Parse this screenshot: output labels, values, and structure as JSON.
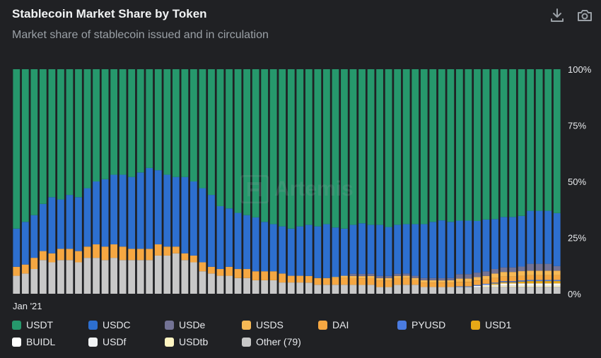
{
  "header": {
    "title": "Stablecoin Market Share by Token",
    "subtitle": "Market share of stablecoin issued and in circulation",
    "download_icon": "download-icon",
    "camera_icon": "camera-icon"
  },
  "watermark": {
    "text": "Artemis"
  },
  "colors": {
    "background": "#202124",
    "grid": "#3c4043",
    "axis_text": "#e8eaed"
  },
  "chart_data": {
    "type": "bar",
    "stacked": true,
    "normalized": true,
    "title": "Stablecoin Market Share by Token",
    "subtitle": "Market share of stablecoin issued and in circulation",
    "x_tick_labels": [
      {
        "index": 0,
        "label": "Jan '21"
      }
    ],
    "y_ticks": [
      "0%",
      "25%",
      "50%",
      "75%",
      "100%"
    ],
    "ylim": [
      0,
      100
    ],
    "y_axis_side": "right",
    "grid": false,
    "legend_position": "bottom",
    "series": [
      {
        "name": "Other (79)",
        "color": "#c8c8c8",
        "values": [
          8,
          9,
          11,
          15,
          14,
          15,
          15,
          14,
          16,
          16,
          15,
          16,
          15,
          15,
          15,
          15,
          17,
          17,
          18,
          15,
          14,
          10,
          9,
          8,
          8,
          7,
          7,
          6,
          6,
          6,
          5,
          5,
          5,
          5,
          4,
          4,
          4,
          4,
          4,
          4,
          4,
          3,
          3,
          4,
          4,
          4,
          3,
          3,
          3,
          3,
          3,
          3,
          3,
          3,
          3,
          3,
          3,
          3,
          3,
          3,
          3,
          3
        ]
      },
      {
        "name": "USDtb",
        "color": "#fff5c2",
        "values": [
          0,
          0,
          0,
          0,
          0,
          0,
          0,
          0,
          0,
          0,
          0,
          0,
          0,
          0,
          0,
          0,
          0,
          0,
          0,
          0,
          0,
          0,
          0,
          0,
          0,
          0,
          0,
          0,
          0,
          0,
          0,
          0,
          0,
          0,
          0,
          0,
          0,
          0,
          0,
          0,
          0,
          0,
          0,
          0,
          0,
          0,
          0,
          0,
          0,
          0,
          0,
          0,
          0,
          0.5,
          0.5,
          0.5,
          0.5,
          0.5,
          0.5,
          0.5,
          0.5,
          0.5
        ]
      },
      {
        "name": "USDf",
        "color": "#f1f3f4",
        "values": [
          0,
          0,
          0,
          0,
          0,
          0,
          0,
          0,
          0,
          0,
          0,
          0,
          0,
          0,
          0,
          0,
          0,
          0,
          0,
          0,
          0,
          0,
          0,
          0,
          0,
          0,
          0,
          0,
          0,
          0,
          0,
          0,
          0,
          0,
          0,
          0,
          0,
          0,
          0,
          0,
          0,
          0,
          0,
          0,
          0,
          0,
          0,
          0,
          0,
          0,
          0,
          0,
          0,
          0,
          0,
          0.5,
          0.5,
          0.5,
          0.5,
          0.5,
          0.5,
          0.5
        ]
      },
      {
        "name": "BUIDL",
        "color": "#ffffff",
        "values": [
          0,
          0,
          0,
          0,
          0,
          0,
          0,
          0,
          0,
          0,
          0,
          0,
          0,
          0,
          0,
          0,
          0,
          0,
          0,
          0,
          0,
          0,
          0,
          0,
          0,
          0,
          0,
          0,
          0,
          0,
          0,
          0,
          0,
          0,
          0,
          0,
          0,
          0,
          0,
          0,
          0,
          0,
          0,
          0,
          0,
          0,
          0,
          0,
          0,
          0,
          0,
          0,
          0.5,
          0.5,
          0.5,
          0.5,
          0.5,
          0.5,
          0.5,
          0.5,
          0.5,
          0.5
        ]
      },
      {
        "name": "USD1",
        "color": "#e6a817",
        "values": [
          0,
          0,
          0,
          0,
          0,
          0,
          0,
          0,
          0,
          0,
          0,
          0,
          0,
          0,
          0,
          0,
          0,
          0,
          0,
          0,
          0,
          0,
          0,
          0,
          0,
          0,
          0,
          0,
          0,
          0,
          0,
          0,
          0,
          0,
          0,
          0,
          0,
          0,
          0,
          0,
          0,
          0,
          0,
          0,
          0,
          0,
          0,
          0,
          0,
          0,
          0,
          0,
          0,
          0,
          0.5,
          0.5,
          0.5,
          0.8,
          1,
          1,
          1,
          1
        ]
      },
      {
        "name": "PYUSD",
        "color": "#4a7be0",
        "values": [
          0,
          0,
          0,
          0,
          0,
          0,
          0,
          0,
          0,
          0,
          0,
          0,
          0,
          0,
          0,
          0,
          0,
          0,
          0,
          0,
          0,
          0,
          0,
          0,
          0,
          0,
          0,
          0,
          0,
          0,
          0,
          0,
          0,
          0,
          0,
          0,
          0,
          0,
          0,
          0,
          0,
          0,
          0,
          0,
          0,
          0,
          0,
          0,
          0,
          0,
          0.3,
          0.3,
          0.4,
          0.4,
          0.4,
          0.5,
          0.5,
          0.5,
          0.5,
          0.5,
          0.5,
          0.5
        ]
      },
      {
        "name": "DAI",
        "color": "#f5a742",
        "values": [
          4,
          4,
          5,
          4,
          4,
          5,
          5,
          5,
          5,
          6,
          6,
          6,
          6,
          5,
          5,
          5,
          5,
          4,
          3,
          3,
          3,
          4,
          3,
          3,
          4,
          4,
          4,
          4,
          4,
          4,
          4,
          3,
          3,
          3,
          3,
          3,
          3,
          3,
          3,
          3,
          3,
          3,
          3,
          3,
          3,
          2,
          2,
          2,
          2,
          2,
          2,
          2,
          2,
          2,
          2,
          2,
          2,
          2,
          2,
          2,
          2,
          2
        ]
      },
      {
        "name": "USDS",
        "color": "#f7b955",
        "values": [
          0,
          0,
          0,
          0,
          0,
          0,
          0,
          0,
          0,
          0,
          0,
          0,
          0,
          0,
          0,
          0,
          0,
          0,
          0,
          0,
          0,
          0,
          0,
          0,
          0,
          0,
          0,
          0,
          0,
          0,
          0,
          0,
          0,
          0,
          0,
          0,
          0.5,
          1,
          1,
          1,
          1,
          1,
          1,
          1,
          1,
          1,
          1,
          1,
          1,
          1,
          1.5,
          1.5,
          1.5,
          1.5,
          2,
          2,
          2,
          2,
          2,
          2,
          2,
          2
        ]
      },
      {
        "name": "USDe",
        "color": "#737395",
        "values": [
          0,
          0,
          0,
          0,
          0,
          0,
          0,
          0,
          0,
          0,
          0,
          0,
          0,
          0,
          0,
          0,
          0,
          0,
          0,
          0,
          0,
          0,
          0,
          0,
          0,
          0,
          0,
          0,
          0,
          0,
          0,
          0,
          0,
          0,
          0,
          0,
          0,
          0,
          1,
          1,
          1,
          1,
          1,
          1,
          1,
          1,
          1,
          1,
          1,
          1,
          2,
          2,
          2,
          2,
          2,
          2,
          2,
          2,
          3,
          3,
          3,
          2
        ]
      },
      {
        "name": "USDC",
        "color": "#2d6fcf",
        "values": [
          17,
          19,
          19,
          21,
          25,
          22,
          24,
          24,
          26,
          28,
          30,
          31,
          32,
          32,
          34,
          36,
          33,
          32,
          31,
          34,
          33,
          33,
          32,
          28,
          26,
          25,
          24,
          24,
          22,
          21,
          21,
          21,
          22,
          23,
          23,
          24,
          22,
          21,
          22,
          23,
          22,
          23,
          22,
          22,
          22,
          23,
          24,
          25,
          26,
          25,
          24,
          24,
          23,
          23,
          22,
          22,
          22,
          22,
          23,
          23,
          23,
          23
        ]
      },
      {
        "name": "USDT",
        "color": "#26986c",
        "values": [
          71,
          68,
          65,
          60,
          57,
          58,
          56,
          57,
          53,
          50,
          49,
          47,
          47,
          48,
          46,
          44,
          45,
          47,
          48,
          48,
          50,
          53,
          56,
          61,
          62,
          64,
          65,
          66,
          68,
          69,
          70,
          71,
          70,
          70,
          70,
          69,
          70.5,
          71,
          70,
          70,
          70,
          70,
          71,
          70,
          69,
          69,
          69,
          68,
          68,
          68,
          68,
          68,
          67.6,
          66.6,
          66.1,
          64.5,
          64.5,
          63.7,
          61.5,
          61.5,
          61.5,
          62.5
        ]
      }
    ]
  },
  "legend": {
    "items": [
      {
        "label": "USDT",
        "color": "#26986c"
      },
      {
        "label": "USDC",
        "color": "#2d6fcf"
      },
      {
        "label": "USDe",
        "color": "#737395"
      },
      {
        "label": "USDS",
        "color": "#f7b955"
      },
      {
        "label": "DAI",
        "color": "#f5a742"
      },
      {
        "label": "PYUSD",
        "color": "#4a7be0"
      },
      {
        "label": "USD1",
        "color": "#e6a817"
      },
      {
        "label": "BUIDL",
        "color": "#ffffff"
      },
      {
        "label": "USDf",
        "color": "#f1f3f4"
      },
      {
        "label": "USDtb",
        "color": "#fff5c2"
      },
      {
        "label": "Other (79)",
        "color": "#c8c8c8"
      }
    ]
  }
}
